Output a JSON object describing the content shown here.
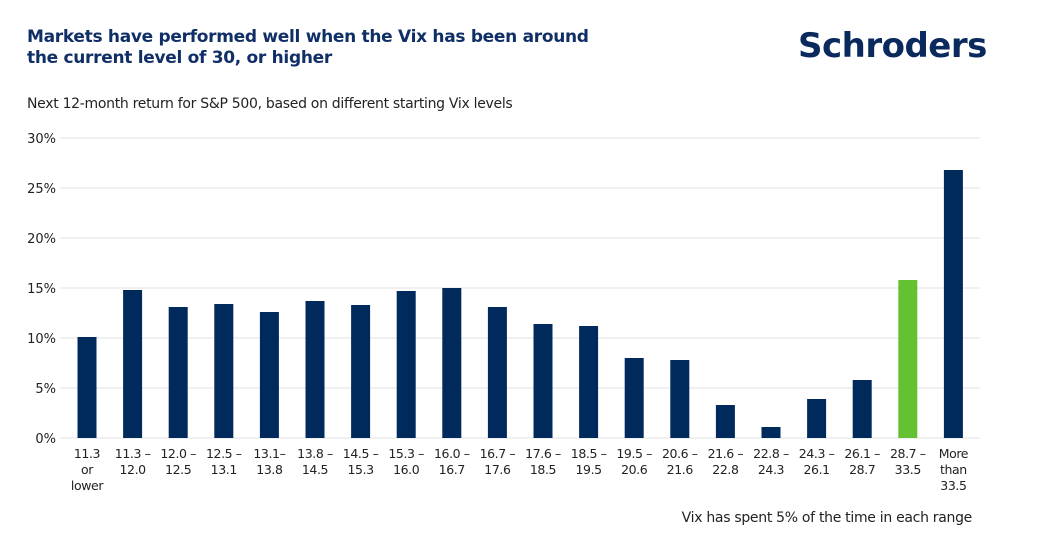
{
  "header": {
    "title_line1": "Markets have performed well when the Vix has been around",
    "title_line2": "the current level of 30, or higher",
    "logo": "Schroders"
  },
  "colors": {
    "primary_bar": "#002a5c",
    "highlight_bar": "#63c132",
    "title": "#0f2f66",
    "gridline": "#e6e6e6"
  },
  "chart_data": {
    "type": "bar",
    "title": "Markets have performed well when the Vix has been around the current level of 30, or higher",
    "subtitle": "Next 12-month return for S&P 500, based on different starting Vix levels",
    "xlabel": "",
    "ylabel": "",
    "note": "Vix has spent 5% of the time in each range",
    "ylim": [
      0,
      30
    ],
    "yticks": [
      0,
      5,
      10,
      15,
      20,
      25,
      30
    ],
    "ytick_labels": [
      "0%",
      "5%",
      "10%",
      "15%",
      "20%",
      "25%",
      "30%"
    ],
    "grid": true,
    "legend": "none",
    "categories": [
      [
        "11.3",
        "or",
        "lower"
      ],
      [
        "11.3 –",
        "12.0"
      ],
      [
        "12.0 –",
        "12.5"
      ],
      [
        "12.5 –",
        "13.1"
      ],
      [
        "13.1–",
        "13.8"
      ],
      [
        "13.8 –",
        "14.5"
      ],
      [
        "14.5 –",
        "15.3"
      ],
      [
        "15.3 –",
        "16.0"
      ],
      [
        "16.0 –",
        "16.7"
      ],
      [
        "16.7 –",
        "17.6"
      ],
      [
        "17.6 –",
        "18.5"
      ],
      [
        "18.5 –",
        "19.5"
      ],
      [
        "19.5 –",
        "20.6"
      ],
      [
        "20.6 –",
        "21.6"
      ],
      [
        "21.6 –",
        "22.8"
      ],
      [
        "22.8 –",
        "24.3"
      ],
      [
        "24.3 –",
        "26.1"
      ],
      [
        "26.1 –",
        "28.7"
      ],
      [
        "28.7 –",
        "33.5"
      ],
      [
        "More",
        "than",
        "33.5"
      ]
    ],
    "series": [
      {
        "name": "Next 12-month S&P 500 return (%)",
        "values": [
          10.1,
          14.8,
          13.1,
          13.4,
          12.6,
          13.7,
          13.3,
          14.7,
          15.0,
          13.1,
          11.4,
          11.2,
          8.0,
          7.8,
          3.3,
          1.1,
          3.9,
          5.8,
          15.8,
          26.8
        ],
        "highlight_index": 18
      }
    ]
  }
}
